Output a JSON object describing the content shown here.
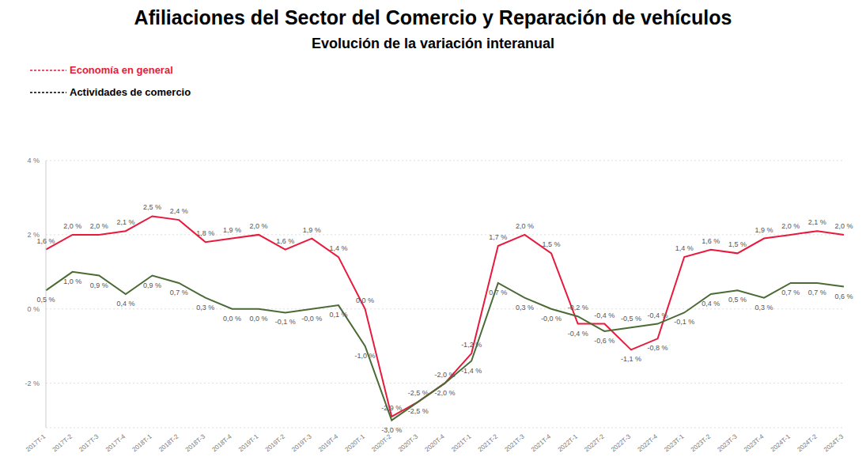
{
  "chart_data": {
    "type": "line",
    "title": "Afiliaciones del Sector del Comercio y Reparación de vehículos",
    "subtitle": "Evolución de la variación interanual",
    "categories": [
      "2017T-1",
      "2017T-2",
      "2017T-3",
      "2017T-4",
      "2018T-1",
      "2018T-2",
      "2018T-3",
      "2018T-4",
      "2019T-1",
      "2019T-2",
      "2019T-3",
      "2019T-4",
      "2020T-1",
      "2020T-2",
      "2020T-3",
      "2020T-4",
      "2021T-1",
      "2021T-2",
      "2021T-3",
      "2021T-4",
      "2022T-1",
      "2022T-2",
      "2022T-3",
      "2022T-4",
      "2023T-1",
      "2023T-2",
      "2023T-3",
      "2023T-4",
      "2024T-1",
      "2024T-2",
      "2024T-3"
    ],
    "series": [
      {
        "name": "Economía en general",
        "color": "#e8193c",
        "values": [
          1.6,
          2.0,
          2.0,
          2.1,
          2.5,
          2.4,
          1.8,
          1.9,
          2.0,
          1.6,
          1.9,
          1.4,
          0.0,
          -2.9,
          -2.5,
          -2.0,
          -1.2,
          1.7,
          2.0,
          1.5,
          -0.4,
          -0.4,
          -1.1,
          -0.8,
          1.4,
          1.6,
          1.5,
          1.9,
          2.0,
          2.1,
          2.0
        ],
        "value_labels": [
          "1,6 %",
          "2,0 %",
          "2,0 %",
          "2,1 %",
          "2,5 %",
          "2,4 %",
          "1,8 %",
          "1,9 %",
          "2,0 %",
          "1,6 %",
          "1,9 %",
          "1,4 %",
          "0,0 %",
          "-2,9 %",
          "-2,5 %",
          "-2,0 %",
          "-1,2 %",
          "1,7 %",
          "2,0 %",
          "1,5 %",
          "-0,4 %",
          "-0,4 %",
          "-1,1 %",
          "-0,8 %",
          "1,4 %",
          "1,6 %",
          "1,5 %",
          "1,9 %",
          "2,0 %",
          "2,1 %",
          "2,0 %"
        ]
      },
      {
        "name": "Actividades de comercio",
        "color": "#4a6b35",
        "values": [
          0.5,
          1.0,
          0.9,
          0.4,
          0.9,
          0.7,
          0.3,
          0.0,
          0.0,
          -0.1,
          -0.0,
          0.1,
          -1.0,
          -3.0,
          -2.5,
          -2.0,
          -1.4,
          0.7,
          0.3,
          -0.0,
          -0.2,
          -0.6,
          -0.5,
          -0.4,
          -0.1,
          0.4,
          0.5,
          0.3,
          0.7,
          0.7,
          0.6
        ],
        "value_labels": [
          "0,5 %",
          "1,0 %",
          "0,9 %",
          "0,4 %",
          "0,9 %",
          "0,7 %",
          "0,3 %",
          "0,0 %",
          "0,0 %",
          "-0,1 %",
          "-0,0 %",
          "0,1 %",
          "-1,0 %",
          "-3,0 %",
          "-2,5 %",
          "-2,0 %",
          "-1,4 %",
          "0,7 %",
          "0,3 %",
          "-0,0 %",
          "-0,2 %",
          "-0,6 %",
          "-0,5 %",
          "-0,4 %",
          "-0,1 %",
          "0,4 %",
          "0,5 %",
          "0,3 %",
          "0,7 %",
          "0,7 %",
          "0,6 %"
        ]
      }
    ],
    "ylim": [
      -3.2,
      4
    ],
    "yticks": [
      {
        "value": -2,
        "label": "-2 %"
      },
      {
        "value": 0,
        "label": "0 %"
      },
      {
        "value": 2,
        "label": "2 %"
      },
      {
        "value": 4,
        "label": "4 %"
      }
    ],
    "grid": true,
    "data_labels": true,
    "legend": "top-left"
  }
}
